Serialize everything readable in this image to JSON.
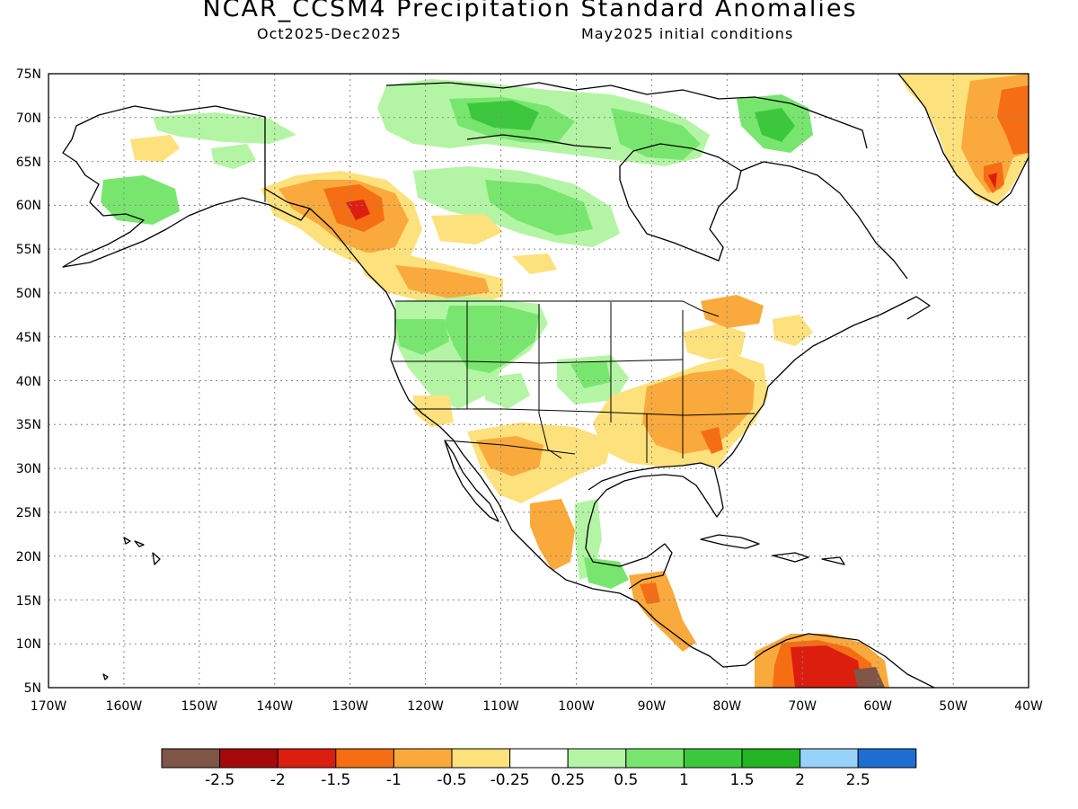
{
  "title": "NCAR_CCSM4 Precipitation Standard Anomalies",
  "subtitle_left": "Oct2025-Dec2025",
  "subtitle_right": "May2025 initial conditions",
  "lat_labels": [
    "75N",
    "70N",
    "65N",
    "60N",
    "55N",
    "50N",
    "45N",
    "40N",
    "35N",
    "30N",
    "25N",
    "20N",
    "15N",
    "10N",
    "5N"
  ],
  "lon_labels": [
    "170W",
    "160W",
    "150W",
    "140W",
    "130W",
    "120W",
    "110W",
    "100W",
    "90W",
    "80W",
    "70W",
    "60W",
    "50W",
    "40W"
  ],
  "colorbar": {
    "colors": [
      "#7f5548",
      "#a50a0a",
      "#dc1e0f",
      "#f56e14",
      "#faaa3c",
      "#fde17d",
      "#ffffff",
      "#b4f5a5",
      "#78e66e",
      "#3cc83c",
      "#22b422",
      "#96d2fa",
      "#1e6ed2"
    ],
    "labels": [
      "-2.5",
      "-2",
      "-1.5",
      "-1",
      "-0.5",
      "-0.25",
      "0.25",
      "0.5",
      "1",
      "1.5",
      "2",
      "2.5"
    ]
  },
  "map_colors": {
    "land_outline": "#000000",
    "grid": "#888888"
  }
}
